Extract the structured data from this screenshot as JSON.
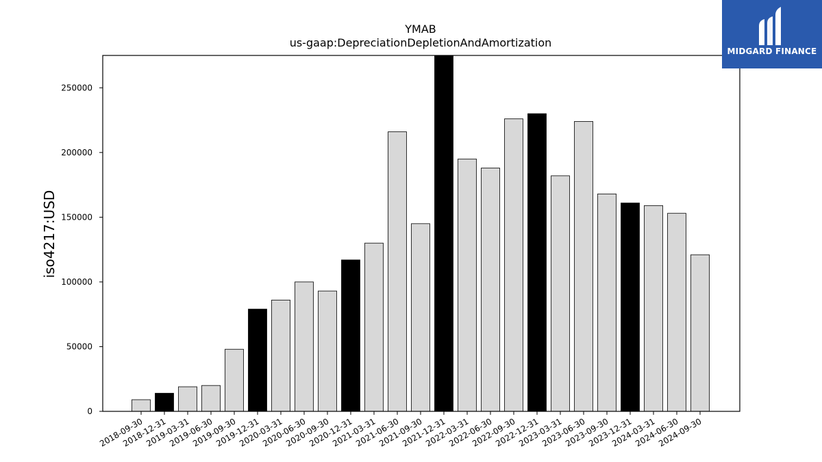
{
  "chart_data": {
    "type": "bar",
    "title": "YMAB",
    "subtitle": "us-gaap:DepreciationDepletionAndAmortization",
    "xlabel": "",
    "ylabel": "iso4217:USD",
    "ylim": [
      0,
      275000
    ],
    "yticks": [
      0,
      50000,
      100000,
      150000,
      200000,
      250000
    ],
    "ytick_labels": [
      "0",
      "50000",
      "100000",
      "150000",
      "200000",
      "250000"
    ],
    "grid": false,
    "categories": [
      "2018-09-30",
      "2018-12-31",
      "2019-03-31",
      "2019-06-30",
      "2019-09-30",
      "2019-12-31",
      "2020-03-31",
      "2020-06-30",
      "2020-09-30",
      "2020-12-31",
      "2021-03-31",
      "2021-06-30",
      "2021-09-30",
      "2021-12-31",
      "2022-03-31",
      "2022-06-30",
      "2022-09-30",
      "2022-12-31",
      "2023-03-31",
      "2023-06-30",
      "2023-09-30",
      "2023-12-31",
      "2024-03-31",
      "2024-06-30",
      "2024-09-30"
    ],
    "values": [
      9000,
      14000,
      19000,
      20000,
      48000,
      79000,
      86000,
      100000,
      93000,
      117000,
      130000,
      216000,
      145000,
      275000,
      195000,
      188000,
      226000,
      230000,
      182000,
      224000,
      168000,
      161000,
      159000,
      153000,
      121000
    ],
    "highlight": [
      false,
      true,
      false,
      false,
      false,
      true,
      false,
      false,
      false,
      true,
      false,
      false,
      false,
      true,
      false,
      false,
      false,
      true,
      false,
      false,
      false,
      true,
      false,
      false,
      false
    ],
    "colors": {
      "bar": "#d8d8d8",
      "highlight": "#000000",
      "edge": "#000000",
      "axis": "#000000"
    }
  },
  "logo": {
    "text": "MIDGARD FINANCE",
    "background": "#2a5aad",
    "icon": "midgard-logo-icon"
  }
}
